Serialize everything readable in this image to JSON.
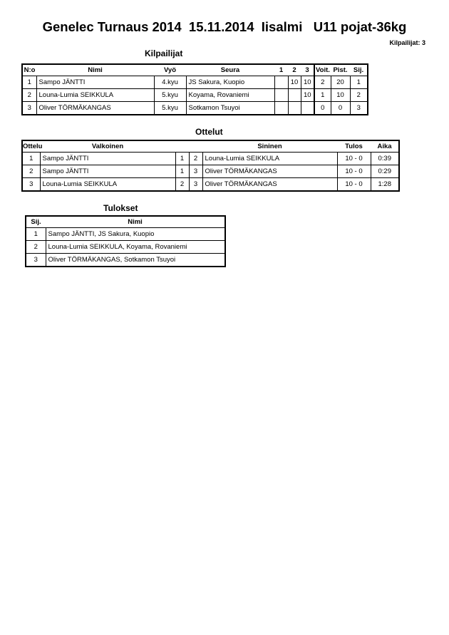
{
  "title": "Genelec Turnaus 2014  15.11.2014  Iisalmi   U11 pojat-36kg",
  "competitor_count": "Kilpailijat: 3",
  "competitors": {
    "heading": "Kilpailijat",
    "headers": [
      "N:o",
      "Nimi",
      "Vyö",
      "Seura",
      "1",
      "2",
      "3",
      "Voit.",
      "Pist.",
      "Sij."
    ],
    "rows": [
      [
        "1",
        "Sampo JÄNTTI",
        "4.kyu",
        "JS Sakura, Kuopio",
        "",
        "10",
        "10",
        "2",
        "20",
        "1"
      ],
      [
        "2",
        "Louna-Lumia SEIKKULA",
        "5.kyu",
        "Koyama, Rovaniemi",
        "",
        "",
        "10",
        "1",
        "10",
        "2"
      ],
      [
        "3",
        "Oliver TÖRMÄKANGAS",
        "5.kyu",
        "Sotkamon Tsuyoi",
        "",
        "",
        "",
        "0",
        "0",
        "3"
      ]
    ]
  },
  "matches": {
    "heading": "Ottelut",
    "headers": [
      "Ottelu",
      "Valkoinen",
      "",
      "",
      "Sininen",
      "Tulos",
      "Aika"
    ],
    "rows": [
      [
        "1",
        "Sampo JÄNTTI",
        "1",
        "2",
        "Louna-Lumia SEIKKULA",
        "10 - 0",
        "0:39"
      ],
      [
        "2",
        "Sampo JÄNTTI",
        "1",
        "3",
        "Oliver TÖRMÄKANGAS",
        "10 - 0",
        "0:29"
      ],
      [
        "3",
        "Louna-Lumia SEIKKULA",
        "2",
        "3",
        "Oliver TÖRMÄKANGAS",
        "10 - 0",
        "1:28"
      ]
    ]
  },
  "results": {
    "heading": "Tulokset",
    "headers": [
      "Sij.",
      "Nimi"
    ],
    "rows": [
      [
        "1",
        "Sampo JÄNTTI, JS Sakura, Kuopio"
      ],
      [
        "2",
        "Louna-Lumia SEIKKULA, Koyama, Rovaniemi"
      ],
      [
        "3",
        "Oliver TÖRMÄKANGAS, Sotkamon Tsuyoi"
      ]
    ]
  }
}
